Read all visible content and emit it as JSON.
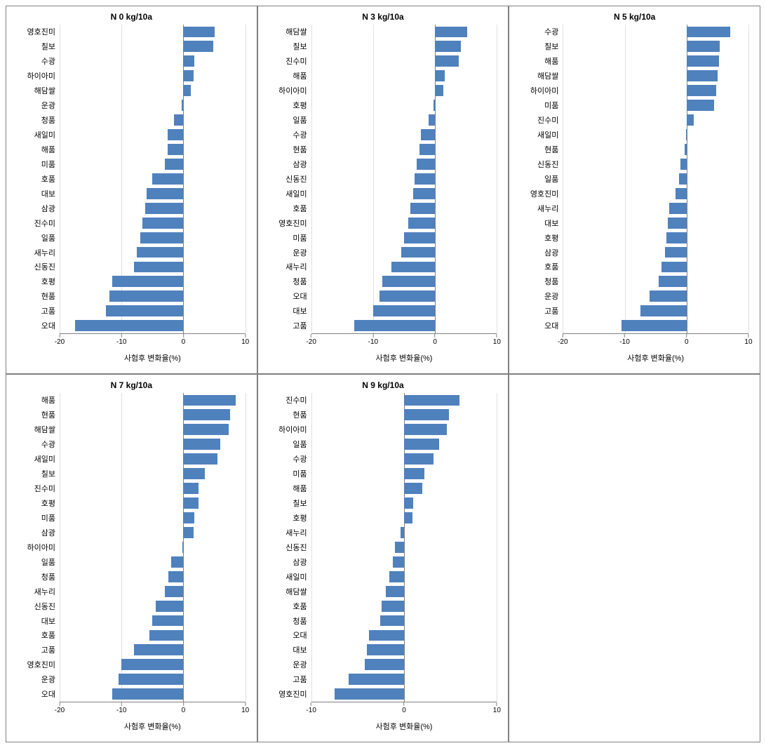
{
  "global": {
    "xlabel": "사험후 변화율(%)",
    "bar_color": "#4f81bd",
    "background_color": "#ffffff",
    "grid_color": "#e0e0e0",
    "axis_color": "#808080",
    "title_fontsize": 12,
    "label_fontsize": 11,
    "tick_fontsize": 10,
    "bar_fill_ratio": 0.76
  },
  "panels": [
    {
      "title": "N 0 kg/10a",
      "xlim": [
        -20,
        10
      ],
      "xtick_step": 10,
      "categories": [
        "영호진미",
        "칠보",
        "수광",
        "하이아미",
        "해담쌀",
        "운광",
        "청품",
        "새일미",
        "해품",
        "미품",
        "호품",
        "대보",
        "삼광",
        "진수미",
        "일품",
        "새누리",
        "신동진",
        "호평",
        "현품",
        "고품",
        "오대"
      ],
      "values": [
        5.0,
        4.8,
        1.8,
        1.6,
        1.2,
        -0.3,
        -1.5,
        -2.5,
        -2.6,
        -3.0,
        -5.0,
        -6.0,
        -6.2,
        -6.6,
        -7.0,
        -7.5,
        -8.0,
        -11.5,
        -12.0,
        -12.5,
        -17.5
      ]
    },
    {
      "title": "N 3 kg/10a",
      "xlim": [
        -20,
        10
      ],
      "xtick_step": 10,
      "categories": [
        "해담쌀",
        "칠보",
        "진수미",
        "해품",
        "하이아미",
        "호평",
        "일품",
        "수광",
        "현품",
        "삼광",
        "신동진",
        "새일미",
        "호품",
        "영호진미",
        "미품",
        "운광",
        "새누리",
        "청품",
        "오대",
        "대보",
        "고품"
      ],
      "values": [
        5.2,
        4.2,
        3.8,
        1.6,
        1.4,
        -0.2,
        -1.0,
        -2.3,
        -2.5,
        -3.0,
        -3.3,
        -3.5,
        -4.0,
        -4.3,
        -5.0,
        -5.5,
        -7.0,
        -8.5,
        -9.0,
        -10.0,
        -13.0
      ]
    },
    {
      "title": "N 5 kg/10a",
      "xlim": [
        -20,
        10
      ],
      "xtick_step": 10,
      "categories": [
        "수광",
        "칠보",
        "해품",
        "해담쌀",
        "하이아미",
        "미품",
        "진수미",
        "새일미",
        "현품",
        "신동진",
        "일품",
        "영호진미",
        "새누리",
        "대보",
        "호평",
        "삼광",
        "호품",
        "청품",
        "운광",
        "고품",
        "오대"
      ],
      "values": [
        7.0,
        5.3,
        5.2,
        5.0,
        4.8,
        4.5,
        1.2,
        -0.1,
        -0.3,
        -1.0,
        -1.2,
        -1.8,
        -2.8,
        -3.0,
        -3.3,
        -3.5,
        -4.0,
        -4.5,
        -6.0,
        -7.5,
        -10.5
      ]
    },
    {
      "title": "N 7 kg/10a",
      "xlim": [
        -20,
        10
      ],
      "xtick_step": 10,
      "categories": [
        "해품",
        "현품",
        "해담쌀",
        "수광",
        "새일미",
        "칠보",
        "진수미",
        "호평",
        "미품",
        "삼광",
        "하이아미",
        "일품",
        "청품",
        "새누리",
        "신동진",
        "대보",
        "호품",
        "고품",
        "영호진미",
        "운광",
        "오대"
      ],
      "values": [
        8.5,
        7.5,
        7.3,
        6.0,
        5.5,
        3.5,
        2.5,
        2.4,
        1.8,
        1.6,
        -0.2,
        -2.0,
        -2.4,
        -3.0,
        -4.5,
        -5.0,
        -5.5,
        -8.0,
        -10.0,
        -10.5,
        -11.5
      ]
    },
    {
      "title": "N 9 kg/10a",
      "xlim": [
        -10,
        10
      ],
      "xtick_step": 10,
      "categories": [
        "진수미",
        "현품",
        "하이아미",
        "일품",
        "수광",
        "미품",
        "해품",
        "칠보",
        "호평",
        "새누리",
        "신동진",
        "삼광",
        "새일미",
        "해담쌀",
        "호품",
        "청품",
        "오대",
        "대보",
        "운광",
        "고품",
        "영호진미"
      ],
      "values": [
        6.0,
        4.8,
        4.6,
        3.8,
        3.2,
        2.2,
        2.0,
        1.0,
        0.9,
        -0.4,
        -1.0,
        -1.2,
        -1.6,
        -2.0,
        -2.4,
        -2.6,
        -3.8,
        -4.0,
        -4.2,
        -6.0,
        -7.5
      ]
    }
  ]
}
